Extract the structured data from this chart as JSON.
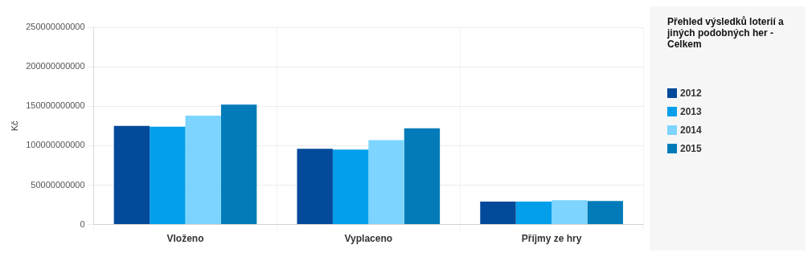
{
  "chart_data": {
    "type": "bar",
    "title": "Přehled výsledků loterií a jiných podobných her - Celkem",
    "ylabel": "Kč",
    "categories": [
      "Vloženo",
      "Vyplaceno",
      "Příjmy ze hry"
    ],
    "series": [
      {
        "name": "2012",
        "color": "#034a9a",
        "values": [
          125000000000,
          96000000000,
          29000000000
        ]
      },
      {
        "name": "2013",
        "color": "#039fea",
        "values": [
          124000000000,
          95000000000,
          29000000000
        ]
      },
      {
        "name": "2014",
        "color": "#7dd4fe",
        "values": [
          138000000000,
          107000000000,
          31000000000
        ]
      },
      {
        "name": "2015",
        "color": "#027bb8",
        "values": [
          152000000000,
          122000000000,
          30000000000
        ]
      }
    ],
    "ylim": [
      0,
      250000000000
    ],
    "yticks": [
      0,
      50000000000,
      100000000000,
      150000000000,
      200000000000,
      250000000000
    ],
    "grid": true,
    "legend": "right"
  }
}
